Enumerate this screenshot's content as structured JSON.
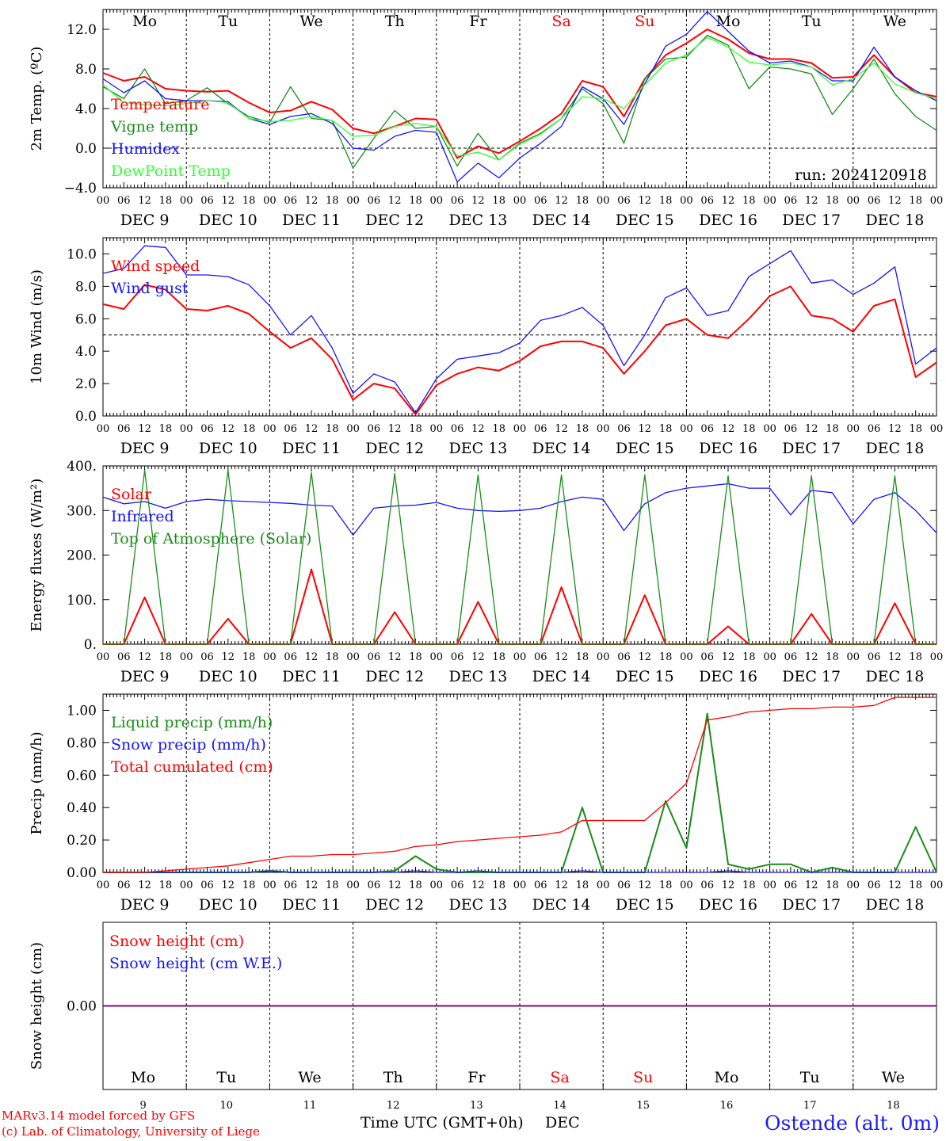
{
  "chart_data": [
    {
      "type": "line",
      "ylabel": "2m Temp. (ºC)",
      "ylim": [
        -4,
        14
      ],
      "yticks": [
        "12.0",
        "8.0",
        "4.0",
        "0.0",
        "−4.0"
      ],
      "dashed_reference": 0,
      "day_labels": [
        "Mo",
        "Tu",
        "We",
        "Th",
        "Fr",
        "Sa",
        "Su",
        "Mo",
        "Tu",
        "We"
      ],
      "run_label": "run: 2024120918",
      "x_hours": [
        0,
        6,
        12,
        18,
        24,
        30,
        36,
        42,
        48,
        54,
        60,
        66,
        72,
        78,
        84,
        90,
        96,
        102,
        108,
        114,
        120,
        126,
        132,
        138,
        144,
        150,
        156,
        162,
        168,
        174,
        180,
        186,
        192,
        198,
        204,
        210,
        216,
        222,
        228,
        234,
        240
      ],
      "series": [
        {
          "name": "Temperature",
          "color": "#ff0000",
          "values": [
            7.6,
            6.8,
            7.2,
            6.0,
            5.8,
            5.7,
            5.8,
            4.6,
            3.6,
            3.8,
            4.7,
            3.9,
            2.0,
            1.5,
            2.2,
            3.0,
            2.9,
            -1.0,
            0.2,
            -0.5,
            0.7,
            2.0,
            3.5,
            6.8,
            6.2,
            3.2,
            7.0,
            9.4,
            10.6,
            12.0,
            11.0,
            9.6,
            9.0,
            9.0,
            8.6,
            7.1,
            7.2,
            9.4,
            7.2,
            5.6,
            5.2
          ]
        },
        {
          "name": "Vigne temp",
          "color": "#1a8c1a",
          "values": [
            6.2,
            5.0,
            8.0,
            4.5,
            4.8,
            6.1,
            4.5,
            3.2,
            2.6,
            6.2,
            3.0,
            2.8,
            -2.0,
            1.0,
            3.8,
            2.0,
            2.2,
            -1.8,
            1.5,
            -1.2,
            0.5,
            1.5,
            3.0,
            6.0,
            4.5,
            0.5,
            7.0,
            9.0,
            9.2,
            11.4,
            10.4,
            6.0,
            8.2,
            8.0,
            7.5,
            3.4,
            6.0,
            9.0,
            5.5,
            3.2,
            1.8
          ]
        },
        {
          "name": "Humidex",
          "color": "#1414ff",
          "values": [
            7.0,
            5.6,
            6.8,
            5.0,
            4.8,
            4.8,
            4.7,
            3.0,
            2.4,
            3.2,
            3.5,
            2.5,
            0.0,
            -0.2,
            1.2,
            1.8,
            1.6,
            -3.4,
            -1.5,
            -3.0,
            -1.0,
            0.5,
            2.2,
            6.2,
            5.0,
            2.4,
            6.5,
            10.3,
            11.5,
            13.8,
            11.8,
            9.8,
            8.6,
            8.8,
            8.2,
            6.8,
            6.8,
            10.2,
            7.2,
            5.8,
            4.8
          ]
        },
        {
          "name": "DewPoint Temp",
          "color": "#33ff33",
          "values": [
            6.4,
            4.6,
            4.4,
            4.3,
            4.5,
            4.8,
            4.6,
            3.0,
            2.7,
            2.8,
            3.2,
            2.8,
            1.2,
            1.3,
            2.2,
            2.5,
            2.2,
            -0.8,
            -0.4,
            -1.2,
            0.4,
            1.4,
            3.0,
            5.2,
            5.0,
            4.0,
            6.4,
            8.6,
            9.4,
            11.2,
            10.2,
            8.7,
            8.4,
            8.6,
            8.2,
            6.4,
            7.0,
            8.6,
            6.5,
            5.6,
            5.0
          ]
        }
      ]
    },
    {
      "type": "line",
      "ylabel": "10m Wind (m/s)",
      "ylim": [
        0,
        11
      ],
      "yticks": [
        "10.0",
        "8.0",
        "6.0",
        "4.0",
        "2.0",
        "0.0"
      ],
      "dashed_reference": 5,
      "x_hours": [
        0,
        6,
        12,
        18,
        24,
        30,
        36,
        42,
        48,
        54,
        60,
        66,
        72,
        78,
        84,
        90,
        96,
        102,
        108,
        114,
        120,
        126,
        132,
        138,
        144,
        150,
        156,
        162,
        168,
        174,
        180,
        186,
        192,
        198,
        204,
        210,
        216,
        222,
        228,
        234,
        240
      ],
      "series": [
        {
          "name": "Wind speed",
          "color": "#ff0000",
          "values": [
            6.9,
            6.6,
            8.1,
            7.8,
            6.6,
            6.5,
            6.8,
            6.3,
            5.2,
            4.2,
            4.8,
            3.5,
            1.0,
            2.0,
            1.7,
            0.1,
            1.9,
            2.6,
            3.0,
            2.8,
            3.4,
            4.3,
            4.6,
            4.6,
            4.2,
            2.6,
            4.0,
            5.6,
            6.0,
            5.0,
            4.8,
            6.0,
            7.4,
            8.0,
            6.2,
            6.0,
            5.2,
            6.8,
            7.2,
            2.4,
            3.3
          ]
        },
        {
          "name": "Wind gust",
          "color": "#1414ff",
          "values": [
            8.8,
            9.1,
            10.5,
            10.4,
            8.7,
            8.7,
            8.6,
            8.1,
            6.8,
            5.0,
            6.2,
            4.2,
            1.4,
            2.6,
            2.1,
            0.2,
            2.3,
            3.5,
            3.7,
            3.9,
            4.5,
            5.9,
            6.2,
            6.7,
            5.6,
            3.1,
            5.0,
            7.3,
            7.9,
            6.2,
            6.5,
            8.6,
            9.4,
            10.2,
            8.2,
            8.4,
            7.5,
            8.2,
            9.2,
            3.2,
            4.2
          ]
        }
      ]
    },
    {
      "type": "line",
      "ylabel": "Energy fluxes (W/m²)",
      "ylim": [
        0,
        400
      ],
      "yticks": [
        "400.",
        "300.",
        "200.",
        "100.",
        "0."
      ],
      "x_hours": [
        0,
        6,
        12,
        18,
        24,
        30,
        36,
        42,
        48,
        54,
        60,
        66,
        72,
        78,
        84,
        90,
        96,
        102,
        108,
        114,
        120,
        126,
        132,
        138,
        144,
        150,
        156,
        162,
        168,
        174,
        180,
        186,
        192,
        198,
        204,
        210,
        216,
        222,
        228,
        234,
        240
      ],
      "series": [
        {
          "name": "Solar",
          "color": "#ff0000",
          "values": [
            0,
            0,
            105,
            0,
            0,
            0,
            57,
            0,
            0,
            0,
            168,
            0,
            0,
            0,
            72,
            0,
            0,
            0,
            95,
            0,
            0,
            0,
            128,
            0,
            0,
            0,
            110,
            0,
            0,
            0,
            40,
            0,
            0,
            0,
            68,
            0,
            0,
            0,
            92,
            0,
            0
          ]
        },
        {
          "name": "Infrared",
          "color": "#1414ff",
          "values": [
            330,
            315,
            320,
            305,
            320,
            325,
            322,
            320,
            318,
            316,
            312,
            310,
            245,
            305,
            310,
            312,
            318,
            305,
            300,
            298,
            300,
            305,
            320,
            330,
            325,
            255,
            315,
            340,
            350,
            355,
            360,
            350,
            350,
            290,
            345,
            340,
            270,
            325,
            340,
            300,
            250
          ]
        },
        {
          "name": "Top of Atmosphere (Solar)",
          "color": "#1a8c1a",
          "values": [
            0,
            0,
            390,
            0,
            0,
            0,
            390,
            0,
            0,
            0,
            385,
            0,
            0,
            0,
            383,
            0,
            0,
            0,
            380,
            0,
            0,
            0,
            380,
            0,
            0,
            0,
            380,
            0,
            0,
            0,
            378,
            0,
            0,
            0,
            378,
            0,
            0,
            0,
            378,
            0,
            0
          ]
        }
      ]
    },
    {
      "type": "line",
      "ylabel": "Precip (mm/h)",
      "ylim": [
        0,
        1.1
      ],
      "yticks": [
        "1.00",
        "0.80",
        "0.60",
        "0.40",
        "0.20",
        "0.00"
      ],
      "x_hours": [
        0,
        6,
        12,
        18,
        24,
        30,
        36,
        42,
        48,
        54,
        60,
        66,
        72,
        78,
        84,
        90,
        96,
        102,
        108,
        114,
        120,
        126,
        132,
        138,
        144,
        150,
        156,
        162,
        168,
        174,
        180,
        186,
        192,
        198,
        204,
        210,
        216,
        222,
        228,
        234,
        240
      ],
      "series": [
        {
          "name": "Liquid precip (mm/h)",
          "color": "#1a8c1a",
          "values": [
            0,
            0,
            0,
            0,
            0,
            0,
            0,
            0,
            0.01,
            0,
            0,
            0,
            0,
            0,
            0.01,
            0.1,
            0.02,
            0,
            0,
            0,
            0,
            0,
            0,
            0.4,
            0,
            0,
            0,
            0.44,
            0.15,
            0.98,
            0.05,
            0.02,
            0.05,
            0.05,
            0,
            0.03,
            0,
            0,
            0,
            0.28,
            0
          ]
        },
        {
          "name": "Snow precip (mm/h)",
          "color": "#1414ff",
          "values": [
            0,
            0,
            0,
            0,
            0,
            0,
            0,
            0,
            0.01,
            0,
            0,
            0,
            0,
            0,
            0,
            0.01,
            0,
            0,
            0.01,
            0,
            0,
            0,
            0,
            0.01,
            0,
            0,
            0,
            0,
            0,
            0,
            0.01,
            0,
            0,
            0,
            0,
            0,
            0,
            0,
            0,
            0,
            0
          ]
        },
        {
          "name": "Total cumulated (cm)",
          "color": "#ff0000",
          "values": [
            0,
            0,
            0,
            0.01,
            0.02,
            0.03,
            0.04,
            0.06,
            0.08,
            0.1,
            0.1,
            0.11,
            0.11,
            0.12,
            0.13,
            0.16,
            0.17,
            0.19,
            0.2,
            0.21,
            0.22,
            0.23,
            0.25,
            0.32,
            0.32,
            0.32,
            0.32,
            0.43,
            0.55,
            0.94,
            0.96,
            0.99,
            1.0,
            1.01,
            1.01,
            1.02,
            1.02,
            1.03,
            1.08,
            1.08,
            1.08
          ]
        }
      ]
    },
    {
      "type": "line",
      "ylabel": "Snow height (cm)",
      "ylim": [
        -1,
        1
      ],
      "yticks": [
        "0.00"
      ],
      "x_hours": [
        0,
        240
      ],
      "series": [
        {
          "name": "Snow height (cm)",
          "color": "#ff0000",
          "values": [
            0,
            0
          ]
        },
        {
          "name": "Snow height (cm W.E.)",
          "color": "#1414ff",
          "values": [
            0,
            0
          ]
        }
      ],
      "day_labels": [
        "Mo",
        "Tu",
        "We",
        "Th",
        "Fr",
        "Sa",
        "Su",
        "Mo",
        "Tu",
        "We"
      ],
      "day_numbers": [
        "9",
        "10",
        "11",
        "12",
        "13",
        "14",
        "15",
        "16",
        "17",
        "18"
      ]
    }
  ],
  "x_axis": {
    "hour_labels": [
      "00",
      "06",
      "12",
      "18"
    ],
    "end_label": "00",
    "date_labels": [
      "DEC  9",
      "DEC 10",
      "DEC 11",
      "DEC 12",
      "DEC 13",
      "DEC 14",
      "DEC 15",
      "DEC 16",
      "DEC 17",
      "DEC 18"
    ],
    "weekend_color": "#ff0000",
    "weekend_indices": [
      5,
      6
    ]
  },
  "footer": {
    "model_line": "MARv3.14 model forced by GFS",
    "copyright_line": "(c) Lab. of Climatology, University of Liege",
    "time_axis_title": "Time UTC (GMT+0h)",
    "month_label": "DEC",
    "station": "Ostende (alt. 0m)"
  }
}
